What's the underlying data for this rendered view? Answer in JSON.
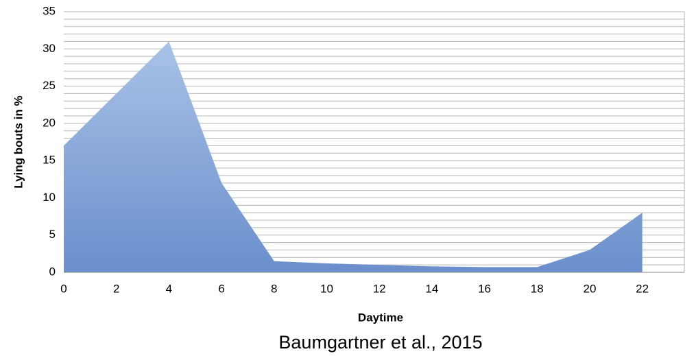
{
  "chart_data": {
    "type": "area",
    "xlabel": "Daytime",
    "ylabel": "Lying bouts in %",
    "annotation": "Baumgartner et al., 2015",
    "x": [
      0,
      2,
      4,
      6,
      8,
      10,
      12,
      14,
      16,
      18,
      20,
      22
    ],
    "values": [
      17,
      24,
      31,
      12,
      1.5,
      1.2,
      1,
      0.8,
      0.7,
      0.7,
      3,
      8
    ],
    "color_top": "#a9c2e6",
    "color_bottom": "#6a8fcc",
    "xlim": [
      0,
      23.6
    ],
    "xticks": [
      0,
      2,
      4,
      6,
      8,
      10,
      12,
      14,
      16,
      18,
      20,
      22
    ],
    "ylim": [
      0,
      35
    ],
    "yticks": [
      0,
      5,
      10,
      15,
      20,
      25,
      30,
      35
    ],
    "yminorticks": [
      0,
      1,
      2,
      3,
      4,
      5,
      6,
      7,
      8,
      9,
      10,
      11,
      12,
      13,
      14,
      15,
      16,
      17,
      18,
      19,
      20,
      21,
      22,
      23,
      24,
      25,
      26,
      27,
      28,
      29,
      30,
      31,
      32,
      33,
      34,
      35
    ],
    "grid": true
  }
}
